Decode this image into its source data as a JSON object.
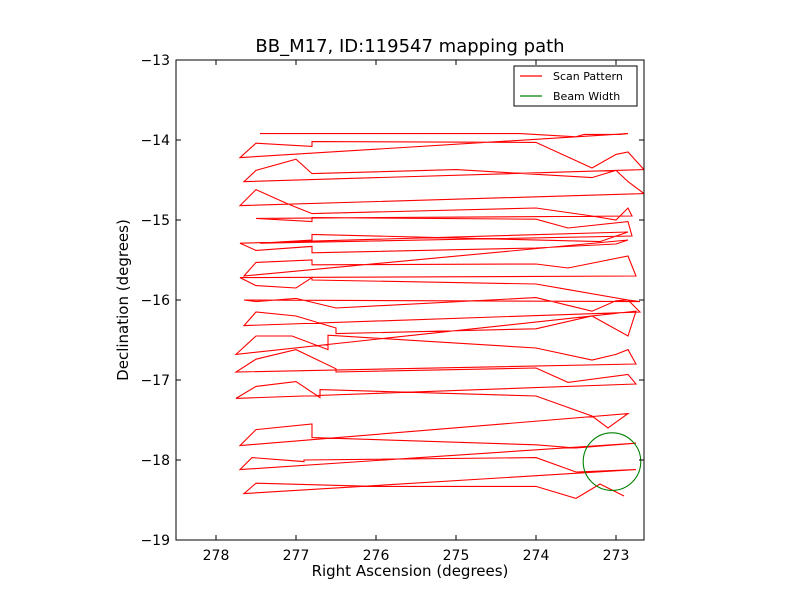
{
  "chart_data": {
    "type": "line",
    "title": "BB_M17, ID:119547 mapping path",
    "xlabel": "Right Ascension (degrees)",
    "ylabel": "Declination (degrees)",
    "xlim": [
      278.5,
      272.65
    ],
    "ylim": [
      -19,
      -13
    ],
    "x_ticks": [
      278,
      277,
      276,
      275,
      274,
      273
    ],
    "x_tick_labels": [
      "278",
      "277",
      "276",
      "275",
      "274",
      "273"
    ],
    "y_ticks": [
      -13,
      -14,
      -15,
      -16,
      -17,
      -18,
      -19
    ],
    "y_tick_labels": [
      "−13",
      "−14",
      "−15",
      "−16",
      "−17",
      "−18",
      "−19"
    ],
    "grid": false,
    "legend_position": "top-right",
    "colors": {
      "scan": "#ff0000",
      "beam": "#008000"
    },
    "series": [
      {
        "name": "Scan Pattern",
        "x": [
          277.45,
          274.2,
          273.5,
          273.4,
          272.95,
          272.85,
          277.7,
          277.5,
          276.8,
          276.8,
          274.0,
          273.3,
          273.0,
          272.85,
          272.65,
          277.65,
          277.5,
          277.0,
          276.8,
          275.0,
          273.3,
          273.0,
          272.85,
          272.65,
          277.7,
          277.5,
          277.1,
          276.8,
          274.0,
          273.3,
          273.0,
          272.85,
          272.8,
          277.5,
          276.8,
          276.8,
          274.0,
          273.6,
          272.85,
          272.8,
          277.45,
          276.8,
          276.8,
          273.2,
          272.85,
          277.7,
          277.5,
          276.8,
          276.8,
          274.0,
          273.0,
          272.85,
          277.65,
          277.5,
          276.8,
          276.8,
          274.0,
          273.6,
          272.85,
          272.75,
          277.7,
          277.5,
          277.0,
          276.8,
          276.8,
          274.0,
          273.6,
          272.85,
          272.7,
          277.65,
          277.5,
          277.0,
          276.5,
          274.0,
          273.3,
          273.0,
          272.85,
          272.7,
          277.65,
          277.5,
          277.0,
          276.5,
          276.5,
          274.0,
          273.3,
          272.85,
          272.75,
          277.75,
          277.5,
          277.05,
          276.6,
          276.6,
          274.0,
          273.3,
          273.0,
          272.85,
          272.75,
          277.75,
          277.5,
          277.0,
          276.5,
          276.5,
          274.0,
          273.6,
          272.85,
          272.75,
          277.75,
          277.5,
          277.0,
          276.7,
          276.7,
          274.0,
          273.3,
          273.1,
          272.85,
          277.7,
          277.5,
          276.8,
          276.8,
          274.0,
          273.5,
          272.75,
          277.7,
          277.55,
          276.9,
          276.9,
          274.0,
          273.5,
          272.75,
          277.65,
          277.5,
          276.0,
          274.0,
          273.5,
          273.2,
          272.9
        ],
        "y": [
          -13.92,
          -13.92,
          -13.96,
          -13.93,
          -13.93,
          -13.92,
          -14.22,
          -14.04,
          -14.08,
          -14.02,
          -14.03,
          -14.35,
          -14.18,
          -14.15,
          -14.37,
          -14.52,
          -14.38,
          -14.24,
          -14.42,
          -14.37,
          -14.47,
          -14.38,
          -14.52,
          -14.67,
          -14.82,
          -14.62,
          -14.8,
          -14.92,
          -14.85,
          -14.95,
          -15.0,
          -14.85,
          -14.95,
          -14.98,
          -15.02,
          -14.97,
          -14.99,
          -15.1,
          -15.02,
          -15.2,
          -15.29,
          -15.25,
          -15.18,
          -15.27,
          -15.15,
          -15.29,
          -15.38,
          -15.33,
          -15.41,
          -15.35,
          -15.3,
          -15.25,
          -15.7,
          -15.53,
          -15.5,
          -15.56,
          -15.55,
          -15.6,
          -15.45,
          -15.7,
          -15.72,
          -15.82,
          -15.85,
          -15.72,
          -15.75,
          -15.8,
          -15.87,
          -16.0,
          -16.02,
          -16.0,
          -16.02,
          -15.98,
          -16.1,
          -15.97,
          -16.14,
          -16.01,
          -16.0,
          -16.15,
          -16.32,
          -16.15,
          -16.2,
          -16.35,
          -16.42,
          -16.36,
          -16.2,
          -16.45,
          -16.14,
          -16.68,
          -16.45,
          -16.45,
          -16.62,
          -16.44,
          -16.6,
          -16.75,
          -16.68,
          -16.62,
          -16.8,
          -16.9,
          -16.74,
          -16.62,
          -16.86,
          -16.9,
          -16.85,
          -17.03,
          -16.93,
          -17.05,
          -17.23,
          -17.08,
          -17.02,
          -17.22,
          -17.12,
          -17.2,
          -17.45,
          -17.6,
          -17.42,
          -17.82,
          -17.62,
          -17.55,
          -17.72,
          -17.81,
          -17.85,
          -17.79,
          -18.12,
          -17.97,
          -18.02,
          -18.0,
          -17.97,
          -18.15,
          -18.12,
          -18.42,
          -18.29,
          -18.33,
          -18.33,
          -18.48,
          -18.3,
          -18.45
        ]
      },
      {
        "name": "Beam Width",
        "shape": "circle",
        "center": [
          273.05,
          -18.02
        ],
        "radius_deg": 0.36
      }
    ]
  }
}
